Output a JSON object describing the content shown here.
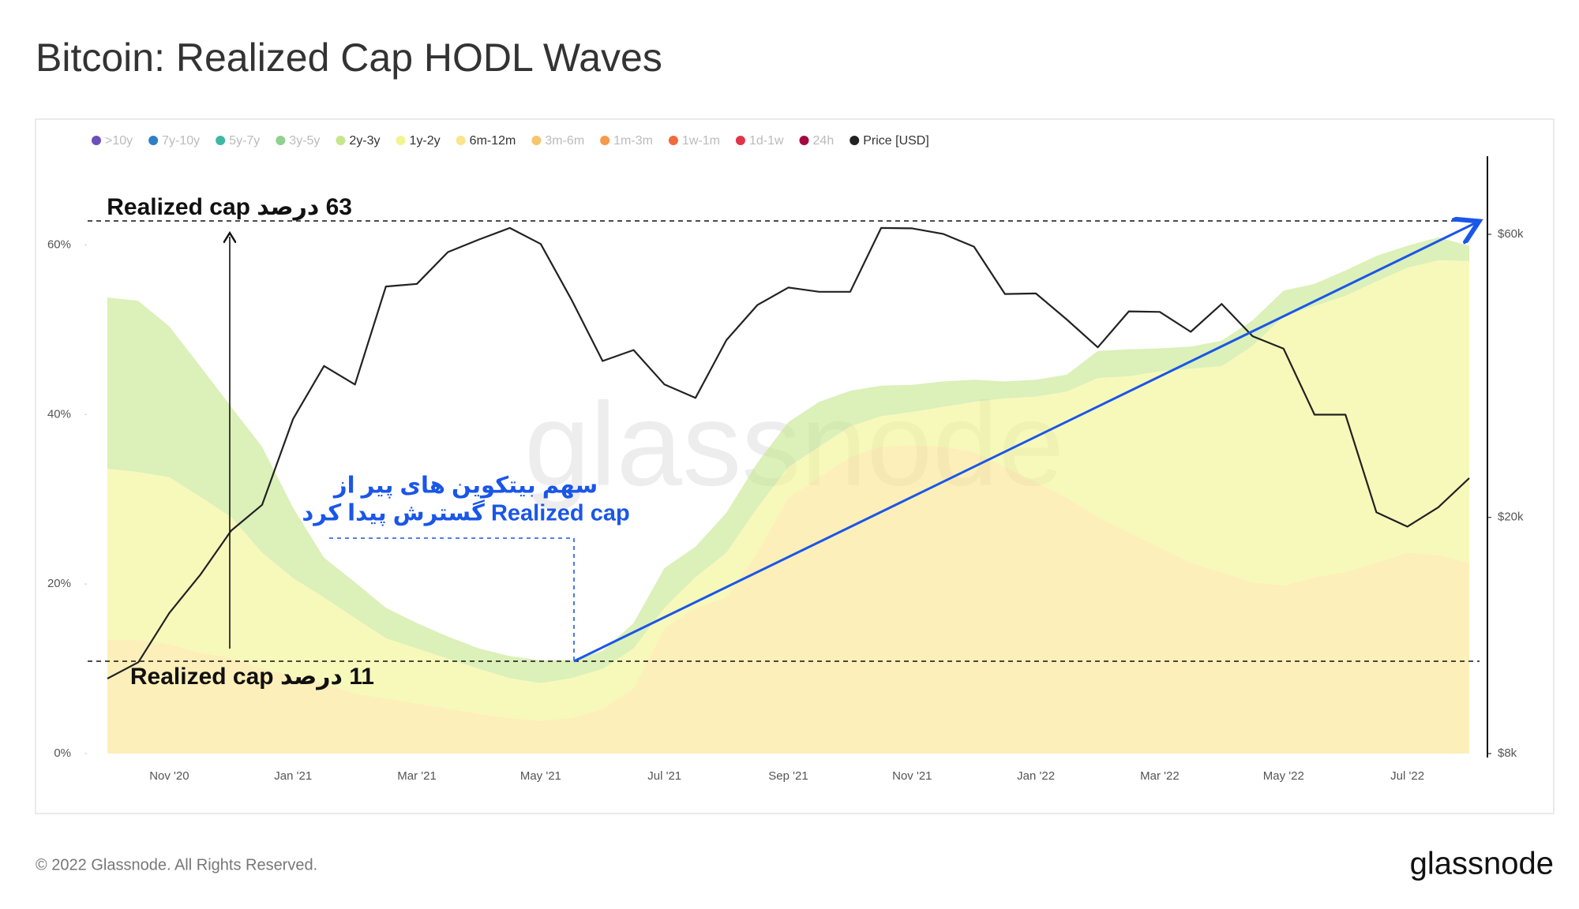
{
  "title": "Bitcoin: Realized Cap HODL Waves",
  "footer": "© 2022 Glassnode. All Rights Reserved.",
  "logo": "glassnode",
  "chart_data": {
    "type": "stacked_area",
    "watermark": "glassnode",
    "legend": [
      {
        "name": ">10y",
        "color": "#6b4fbb",
        "active": false
      },
      {
        "name": "7y-10y",
        "color": "#2e7ec8",
        "active": false
      },
      {
        "name": "5y-7y",
        "color": "#3cb8a5",
        "active": false
      },
      {
        "name": "3y-5y",
        "color": "#8fd18f",
        "active": false
      },
      {
        "name": "2y-3y",
        "color": "#c5e68b",
        "active": true
      },
      {
        "name": "1y-2y",
        "color": "#f2f58e",
        "active": true
      },
      {
        "name": "6m-12m",
        "color": "#fbe48a",
        "active": true
      },
      {
        "name": "3m-6m",
        "color": "#f9c46b",
        "active": false
      },
      {
        "name": "1m-3m",
        "color": "#f59a4b",
        "active": false
      },
      {
        "name": "1w-1m",
        "color": "#ef6b3c",
        "active": false
      },
      {
        "name": "1d-1w",
        "color": "#e0344a",
        "active": false
      },
      {
        "name": "24h",
        "color": "#a4083f",
        "active": false
      },
      {
        "name": "Price [USD]",
        "color": "#222222",
        "active": true
      }
    ],
    "categories": [
      null,
      null,
      "Nov '20",
      null,
      null,
      null,
      "Jan '21",
      null,
      null,
      null,
      "Mar '21",
      null,
      null,
      null,
      "May '21",
      null,
      null,
      null,
      "Jul '21",
      null,
      null,
      null,
      "Sep '21",
      null,
      null,
      null,
      "Nov '21",
      null,
      null,
      null,
      "Jan '22",
      null,
      null,
      null,
      "Mar '22",
      null,
      null,
      null,
      "May '22",
      null,
      null,
      null,
      "Jul '22",
      null,
      null
    ],
    "series": [
      {
        "name": "6m-12m",
        "color": "#fbe48a",
        "values": [
          13.4,
          13.4,
          12.9,
          11.9,
          11.3,
          10.1,
          9.1,
          8.3,
          7.1,
          6.5,
          5.9,
          5.3,
          4.7,
          4.2,
          3.9,
          4.2,
          5.3,
          7.7,
          14.8,
          17.2,
          18.4,
          23.7,
          30.2,
          32.6,
          35.0,
          36.2,
          36.4,
          36.2,
          35.6,
          33.8,
          32.0,
          30.2,
          27.9,
          26.1,
          24.3,
          22.5,
          21.4,
          20.2,
          19.8,
          20.8,
          21.4,
          22.5,
          23.7,
          23.4,
          22.5
        ]
      },
      {
        "name": "1y-2y",
        "color": "#f2f58e",
        "values": [
          20.2,
          19.8,
          19.7,
          18.4,
          16.6,
          13.6,
          11.6,
          10.1,
          8.9,
          7.1,
          6.5,
          5.9,
          5.3,
          4.7,
          4.4,
          4.7,
          4.7,
          4.7,
          2.4,
          3.6,
          5.3,
          5.3,
          3.6,
          3.6,
          3.6,
          3.6,
          3.9,
          4.7,
          5.9,
          8.1,
          10.1,
          12.5,
          16.4,
          18.4,
          20.8,
          22.9,
          24.3,
          27.9,
          31.8,
          32.0,
          32.6,
          33.2,
          33.6,
          34.8,
          35.6
        ]
      },
      {
        "name": "2y-3y",
        "color": "#c5e68b",
        "values": [
          20.2,
          20.2,
          17.8,
          15.4,
          13.0,
          12.5,
          8.3,
          4.7,
          4.2,
          3.6,
          3.0,
          2.6,
          2.4,
          2.6,
          2.7,
          2.1,
          2.1,
          3.0,
          4.7,
          3.6,
          4.7,
          5.3,
          5.3,
          5.3,
          4.2,
          3.6,
          3.2,
          3.0,
          2.6,
          2.0,
          2.0,
          2.0,
          3.2,
          3.2,
          2.7,
          2.6,
          3.0,
          3.0,
          3.0,
          2.6,
          3.0,
          3.0,
          2.6,
          2.7,
          1.8
        ]
      },
      {
        "name": "Price [USD]",
        "color": "#222222",
        "axis": "y2",
        "type": "line",
        "values": [
          10700,
          11400,
          13800,
          16000,
          19000,
          21000,
          29300,
          36000,
          33500,
          49000,
          49500,
          56000,
          58800,
          61500,
          57800,
          46500,
          36700,
          38300,
          33500,
          31800,
          39800,
          45600,
          48800,
          48000,
          48000,
          61500,
          61400,
          60100,
          57200,
          47600,
          47700,
          43100,
          38700,
          44500,
          44400,
          41100,
          45800,
          40400,
          38500,
          29800,
          29800,
          20400,
          19300,
          20800,
          23300
        ]
      }
    ],
    "ylim": [
      0,
      70
    ],
    "yticks": [
      {
        "value": 0,
        "label": "0%"
      },
      {
        "value": 20,
        "label": "20%"
      },
      {
        "value": 40,
        "label": "40%"
      },
      {
        "value": 60,
        "label": "60%"
      }
    ],
    "y2lim": [
      8000,
      80000
    ],
    "y2log": true,
    "y2ticks": [
      {
        "value": 8000,
        "label": "$8k"
      },
      {
        "value": 20000,
        "label": "$20k"
      },
      {
        "value": 60000,
        "label": "$60k"
      }
    ],
    "annotations": [
      "63 درصد Realized cap",
      "11 درصد Realized cap",
      "سهم بیتکوین های پیر از",
      "Realized cap گسترش پیدا کرد"
    ]
  }
}
